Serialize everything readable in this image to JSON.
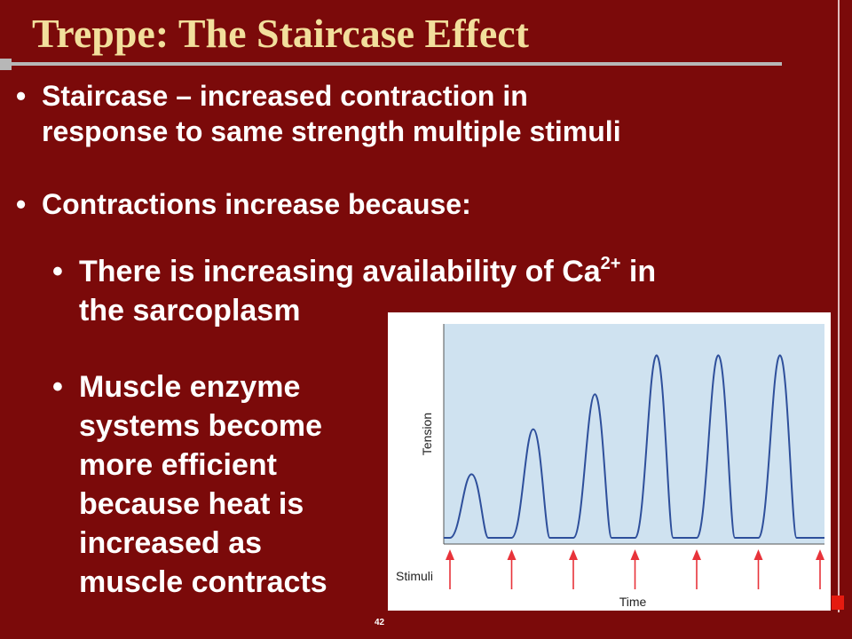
{
  "slide": {
    "title": "Treppe: The Staircase Effect",
    "bullets": [
      {
        "marker": "•",
        "lines": [
          "Staircase – increased contraction in",
          "response to same strength multiple stimuli"
        ]
      },
      {
        "marker": "•",
        "lines": [
          "Contractions increase because:"
        ]
      }
    ],
    "sub_bullets": [
      {
        "marker": "•",
        "line1_pre": "There is increasing availability of Ca",
        "line1_sup": "2+",
        "line1_post": " in",
        "line2": "the sarcoplasm"
      },
      {
        "marker": "•",
        "lines": [
          "Muscle enzyme",
          "systems become",
          "more efficient",
          "because heat is",
          "increased as",
          "muscle contracts"
        ]
      }
    ],
    "page_number": "42"
  },
  "colors": {
    "background": "#7b0a0a",
    "title": "#f2df9c",
    "plot_fill": "#cfe2f0",
    "trace": "#2e4f9b",
    "arrow": "#e8333a"
  },
  "chart_data": {
    "type": "line",
    "xlabel": "Time",
    "ylabel": "Tension",
    "stimuli_label": "Stimuli",
    "grid": false,
    "legend": "none",
    "stimuli_count": 7,
    "peak_tension_relative": [
      0.31,
      0.53,
      0.7,
      0.89,
      0.89,
      0.89
    ]
  }
}
